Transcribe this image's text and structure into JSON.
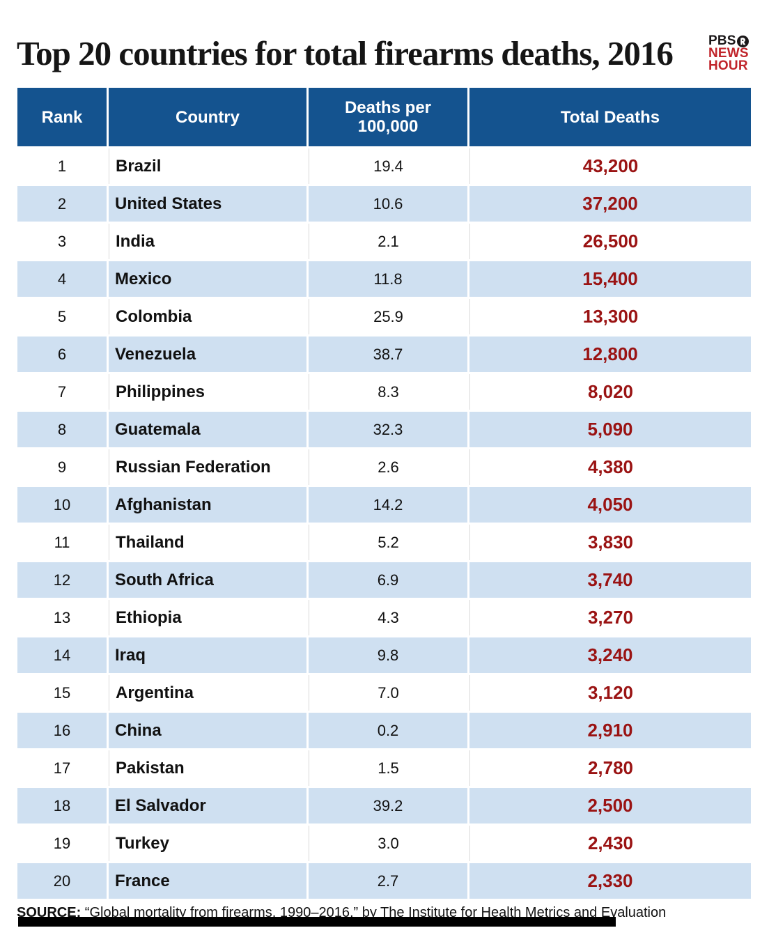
{
  "header": {
    "title": "Top 20 countries for total firearms deaths, 2016",
    "logo": {
      "pbs": "PBS",
      "news": "NEWS",
      "hour": "HOUR"
    }
  },
  "table": {
    "columns": [
      "Rank",
      "Country",
      "Deaths per 100,000",
      "Total Deaths"
    ],
    "rows": [
      {
        "rank": "1",
        "country": "Brazil",
        "rate": "19.4",
        "total": "43,200"
      },
      {
        "rank": "2",
        "country": "United States",
        "rate": "10.6",
        "total": "37,200"
      },
      {
        "rank": "3",
        "country": "India",
        "rate": "2.1",
        "total": "26,500"
      },
      {
        "rank": "4",
        "country": "Mexico",
        "rate": "11.8",
        "total": "15,400"
      },
      {
        "rank": "5",
        "country": "Colombia",
        "rate": "25.9",
        "total": "13,300"
      },
      {
        "rank": "6",
        "country": "Venezuela",
        "rate": "38.7",
        "total": "12,800"
      },
      {
        "rank": "7",
        "country": "Philippines",
        "rate": "8.3",
        "total": "8,020"
      },
      {
        "rank": "8",
        "country": "Guatemala",
        "rate": "32.3",
        "total": "5,090"
      },
      {
        "rank": "9",
        "country": "Russian Federation",
        "rate": "2.6",
        "total": "4,380"
      },
      {
        "rank": "10",
        "country": "Afghanistan",
        "rate": "14.2",
        "total": "4,050"
      },
      {
        "rank": "11",
        "country": "Thailand",
        "rate": "5.2",
        "total": "3,830"
      },
      {
        "rank": "12",
        "country": "South Africa",
        "rate": "6.9",
        "total": "3,740"
      },
      {
        "rank": "13",
        "country": "Ethiopia",
        "rate": "4.3",
        "total": "3,270"
      },
      {
        "rank": "14",
        "country": "Iraq",
        "rate": "9.8",
        "total": "3,240"
      },
      {
        "rank": "15",
        "country": "Argentina",
        "rate": "7.0",
        "total": "3,120"
      },
      {
        "rank": "16",
        "country": "China",
        "rate": "0.2",
        "total": "2,910"
      },
      {
        "rank": "17",
        "country": "Pakistan",
        "rate": "1.5",
        "total": "2,780"
      },
      {
        "rank": "18",
        "country": "El Salvador",
        "rate": "39.2",
        "total": "2,500"
      },
      {
        "rank": "19",
        "country": "Turkey",
        "rate": "3.0",
        "total": "2,430"
      },
      {
        "rank": "20",
        "country": "France",
        "rate": "2.7",
        "total": "2,330"
      }
    ]
  },
  "footer": {
    "source_label": "SOURCE:",
    "source_text": "“Global mortality from firearms, 1990–2016,” by The Institute for Health Metrics and Evaluation"
  },
  "colors": {
    "header_blue": "#14538f",
    "row_light_blue": "#cfe0f1",
    "total_deaths_red": "#9a1313",
    "logo_red": "#c0242a",
    "title_black": "#151515"
  },
  "chart_data": {
    "type": "table",
    "title": "Top 20 countries for total firearms deaths, 2016",
    "columns": [
      "Rank",
      "Country",
      "Deaths per 100,000",
      "Total Deaths"
    ],
    "categories": [
      "Brazil",
      "United States",
      "India",
      "Mexico",
      "Colombia",
      "Venezuela",
      "Philippines",
      "Guatemala",
      "Russian Federation",
      "Afghanistan",
      "Thailand",
      "South Africa",
      "Ethiopia",
      "Iraq",
      "Argentina",
      "China",
      "Pakistan",
      "El Salvador",
      "Turkey",
      "France"
    ],
    "series": [
      {
        "name": "Deaths per 100,000",
        "values": [
          19.4,
          10.6,
          2.1,
          11.8,
          25.9,
          38.7,
          8.3,
          32.3,
          2.6,
          14.2,
          5.2,
          6.9,
          4.3,
          9.8,
          7.0,
          0.2,
          1.5,
          39.2,
          3.0,
          2.7
        ]
      },
      {
        "name": "Total Deaths",
        "values": [
          43200,
          37200,
          26500,
          15400,
          13300,
          12800,
          8020,
          5090,
          4380,
          4050,
          3830,
          3740,
          3270,
          3240,
          3120,
          2910,
          2780,
          2500,
          2430,
          2330
        ]
      }
    ]
  }
}
